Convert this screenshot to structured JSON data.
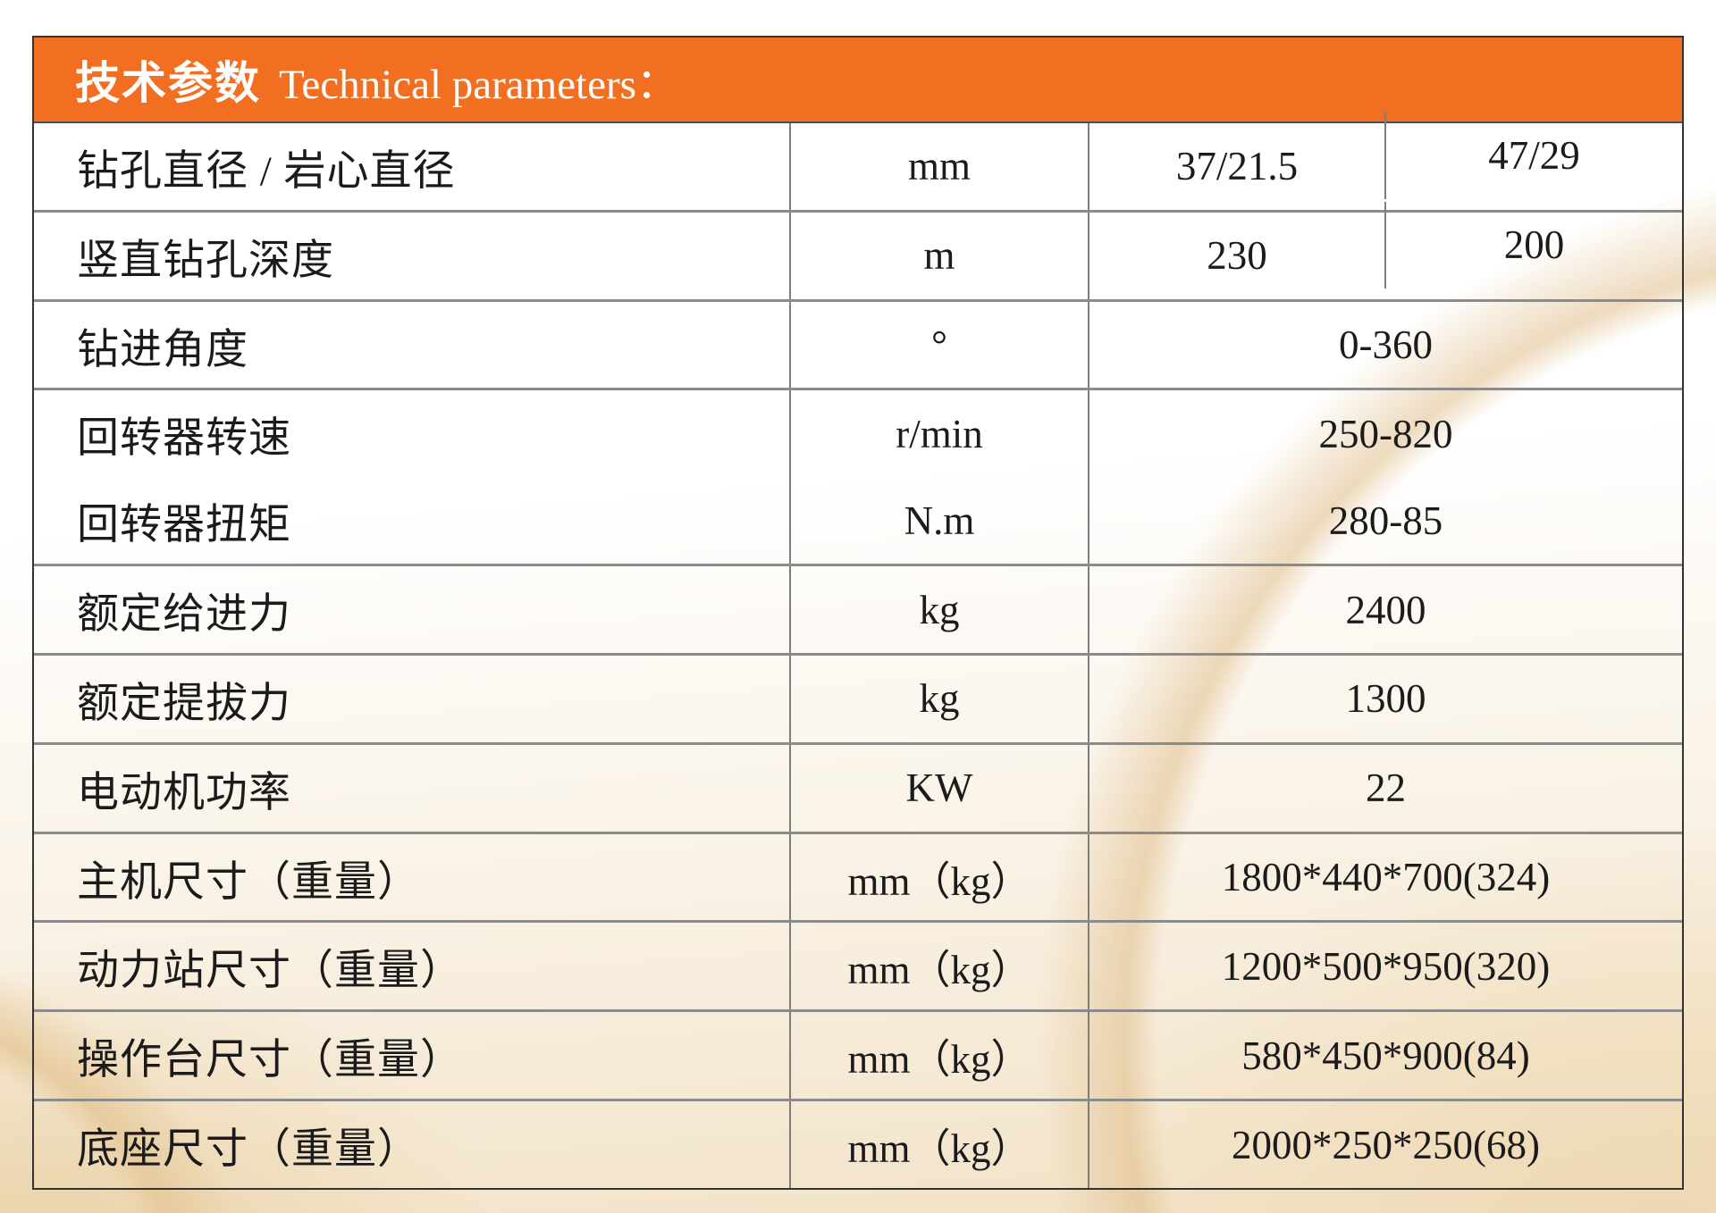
{
  "table": {
    "header": {
      "title_zh": "技术参数",
      "title_en": "Technical parameters：",
      "bg_color": "#F26E21",
      "text_color": "#FFFFFF"
    },
    "rows": [
      {
        "label": "钻孔直径 / 岩心直径",
        "unit": "mm",
        "values": [
          "37/21.5",
          "47/29"
        ]
      },
      {
        "label": "竖直钻孔深度",
        "unit": "m",
        "values": [
          "230",
          "200"
        ]
      },
      {
        "label": "钻进角度",
        "unit": "°",
        "values": [
          "0-360"
        ]
      },
      {
        "label": "回转器转速",
        "unit": "r/min",
        "values": [
          "250-820"
        ]
      },
      {
        "label": "回转器扭矩",
        "unit": "N.m",
        "values": [
          "280-85"
        ]
      },
      {
        "label": "额定给进力",
        "unit": "kg",
        "values": [
          "2400"
        ]
      },
      {
        "label": "额定提拔力",
        "unit": "kg",
        "values": [
          "1300"
        ]
      },
      {
        "label": "电动机功率",
        "unit": "KW",
        "values": [
          "22"
        ]
      },
      {
        "label": "主机尺寸（重量）",
        "unit": "mm（kg）",
        "values": [
          "1800*440*700(324)"
        ]
      },
      {
        "label": "动力站尺寸（重量）",
        "unit": "mm（kg）",
        "values": [
          "1200*500*950(320)"
        ]
      },
      {
        "label": "操作台尺寸（重量）",
        "unit": "mm（kg）",
        "values": [
          "580*450*900(84)"
        ]
      },
      {
        "label": "底座尺寸（重量）",
        "unit": "mm（kg）",
        "values": [
          "2000*250*250(68)"
        ]
      }
    ],
    "colors": {
      "outer_border": "#333333",
      "h_grid_line": "#8b8b8b",
      "v_grid_line": "#7d7d7d",
      "watermark_tan": "#e5c798"
    }
  }
}
